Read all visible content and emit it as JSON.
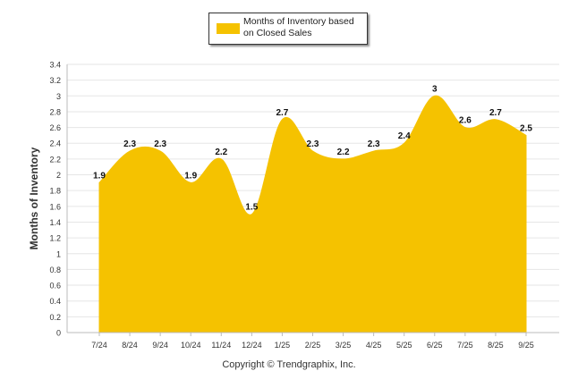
{
  "chart_data": {
    "type": "area",
    "categories": [
      "7/24",
      "8/24",
      "9/24",
      "10/24",
      "11/24",
      "12/24",
      "1/25",
      "2/25",
      "3/25",
      "4/25",
      "5/25",
      "6/25",
      "7/25",
      "8/25",
      "9/25"
    ],
    "series": [
      {
        "name": "Months of Inventory based on Closed Sales",
        "values": [
          1.9,
          2.3,
          2.3,
          1.9,
          2.2,
          1.5,
          2.7,
          2.3,
          2.2,
          2.3,
          2.4,
          3,
          2.6,
          2.7,
          2.5
        ],
        "color": "#f5c200"
      }
    ],
    "ylabel": "Months of Inventory",
    "xlabel": "",
    "ylim": [
      0,
      3.4
    ],
    "yticks": [
      "0",
      "0.2",
      "0.4",
      "0.6",
      "0.8",
      "1",
      "1.2",
      "1.4",
      "1.6",
      "1.8",
      "2",
      "2.2",
      "2.4",
      "2.6",
      "2.8",
      "3",
      "3.2",
      "3.4"
    ],
    "grid": true,
    "legend_position": "top-center"
  },
  "legend": {
    "label": "Months of Inventory based on Closed Sales"
  },
  "footer": {
    "copyright": "Copyright © Trendgraphix, Inc."
  }
}
